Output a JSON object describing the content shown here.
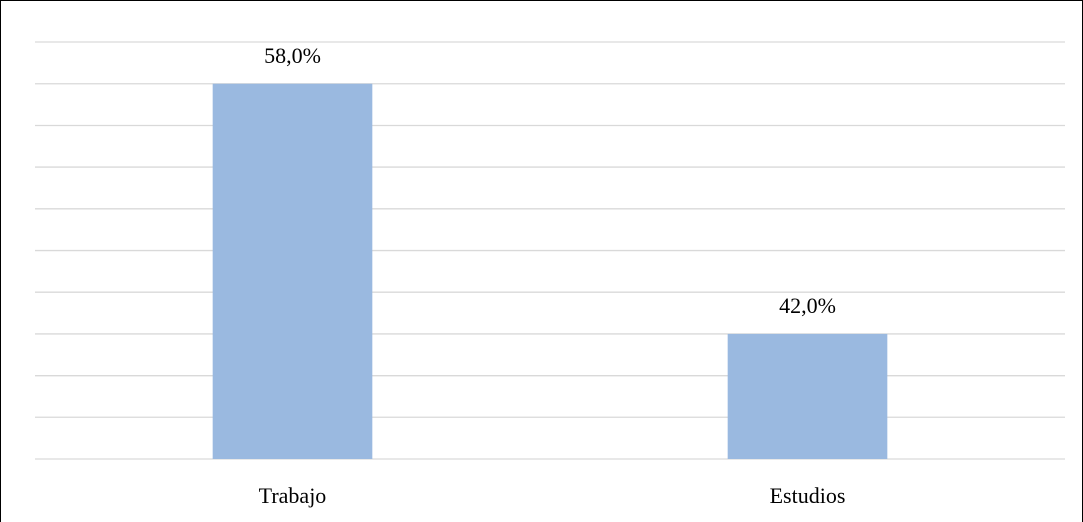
{
  "chart_data": {
    "type": "bar",
    "categories": [
      "Trabajo",
      "Estudios"
    ],
    "values": [
      58,
      42
    ],
    "value_labels": [
      "58,0%",
      "42,0%"
    ],
    "color": "#9ab9e0",
    "ylim": [
      34,
      60.67
    ],
    "yticks": [
      34,
      36.67,
      39.33,
      42,
      44.67,
      47.33,
      50,
      52.67,
      55.33,
      58,
      60.67
    ],
    "grid": true
  }
}
